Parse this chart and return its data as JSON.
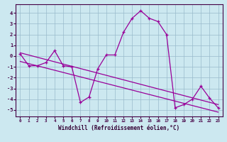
{
  "xlabel": "Windchill (Refroidissement éolien,°C)",
  "background_color": "#cce8f0",
  "line_color": "#990099",
  "grid_color": "#99bbcc",
  "hours": [
    0,
    1,
    2,
    3,
    4,
    5,
    6,
    7,
    8,
    9,
    10,
    11,
    12,
    13,
    14,
    15,
    16,
    17,
    18,
    19,
    20,
    21,
    22,
    23
  ],
  "values": [
    0.2,
    -0.9,
    -0.9,
    -0.6,
    0.5,
    -0.9,
    -1.0,
    -4.3,
    -3.8,
    -1.2,
    0.1,
    0.1,
    2.2,
    3.5,
    4.2,
    3.5,
    3.2,
    2.0,
    -4.8,
    -4.5,
    -4.0,
    -2.8,
    -3.9,
    -4.8
  ],
  "trend1": [
    0.3,
    -4.5
  ],
  "trend2": [
    -0.5,
    -5.2
  ],
  "ylim": [
    -5.6,
    4.8
  ],
  "xlim": [
    -0.5,
    23.5
  ],
  "yticks": [
    -5,
    -4,
    -3,
    -2,
    -1,
    0,
    1,
    2,
    3,
    4
  ],
  "xticks": [
    0,
    1,
    2,
    3,
    4,
    5,
    6,
    7,
    8,
    9,
    10,
    11,
    12,
    13,
    14,
    15,
    16,
    17,
    18,
    19,
    20,
    21,
    22,
    23
  ],
  "spine_color": "#440044",
  "tick_color": "#440044",
  "label_color": "#330033"
}
